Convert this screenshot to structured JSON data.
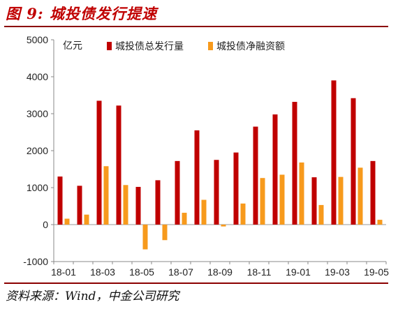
{
  "header": {
    "title": "图 9:  城投债发行提速"
  },
  "footer": {
    "source": "资料来源：Wind，中金公司研究"
  },
  "colors": {
    "gross": "#c00000",
    "net": "#f79a1c",
    "rule": "#8b0000",
    "title": "#c00000"
  },
  "chart_data": {
    "type": "bar",
    "ylabel": "亿元",
    "ylim": [
      -1000,
      5000
    ],
    "yticks": [
      -1000,
      0,
      1000,
      2000,
      3000,
      4000,
      5000
    ],
    "categories": [
      "18-01",
      "18-02",
      "18-03",
      "18-04",
      "18-05",
      "18-06",
      "18-07",
      "18-08",
      "18-09",
      "18-10",
      "18-11",
      "18-12",
      "19-01",
      "19-02",
      "19-03",
      "19-04",
      "19-05"
    ],
    "tick_labels": [
      "18-01",
      "18-03",
      "18-05",
      "18-07",
      "18-09",
      "18-11",
      "19-01",
      "19-03",
      "19-05"
    ],
    "legend_position": "top",
    "grid": false,
    "series": [
      {
        "name": "城投债总发行量",
        "color": "#c00000",
        "values": [
          1300,
          1050,
          3350,
          3220,
          1020,
          1200,
          1720,
          2550,
          1750,
          1950,
          2650,
          2980,
          3320,
          1280,
          3900,
          3420,
          1720
        ]
      },
      {
        "name": "城投债净融资额",
        "color": "#f79a1c",
        "values": [
          160,
          270,
          1580,
          1070,
          -670,
          -420,
          320,
          670,
          -50,
          570,
          1260,
          1350,
          1680,
          530,
          1290,
          1540,
          130
        ]
      }
    ]
  }
}
